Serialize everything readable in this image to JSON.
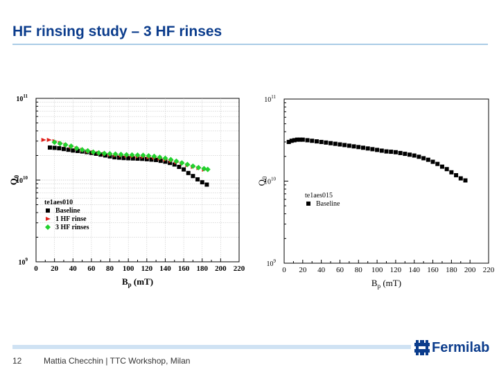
{
  "slide": {
    "title": "HF rinsing study – 3 HF rinses",
    "page_number": "12",
    "footer_text": "Mattia Checchin | TTC Workshop, Milan",
    "logo_text": "Fermilab",
    "logo_icon": "fermilab-logo-icon",
    "accent_color": "#0b3c8c"
  },
  "chart_data": [
    {
      "type": "scatter",
      "title": "",
      "xlabel": "B",
      "xlabel_sub": "p",
      "xlabel_unit": " (mT)",
      "ylabel": "Q",
      "ylabel_sub": "0",
      "xlim": [
        0,
        220
      ],
      "ylim": [
        1000000000.0,
        100000000000.0
      ],
      "yscale": "log",
      "x_ticks": [
        "0",
        "20",
        "40",
        "60",
        "80",
        "100",
        "120",
        "140",
        "160",
        "180",
        "200",
        "220"
      ],
      "y_tick_base": "10",
      "y_tick_exponents": [
        "9",
        "10",
        "11"
      ],
      "grid": true,
      "legend_title": "te1aes010",
      "legend_position": "lower-left",
      "series": [
        {
          "name": "Baseline",
          "marker": "square",
          "color": "#000000",
          "x": [
            15,
            20,
            25,
            30,
            35,
            40,
            45,
            50,
            55,
            60,
            65,
            70,
            75,
            80,
            85,
            90,
            95,
            100,
            105,
            110,
            115,
            120,
            125,
            130,
            135,
            140,
            145,
            150,
            155,
            160,
            165,
            170,
            175,
            180,
            185
          ],
          "y": [
            25000000000.0,
            24800000000.0,
            24500000000.0,
            24000000000.0,
            23500000000.0,
            23000000000.0,
            22700000000.0,
            22400000000.0,
            22000000000.0,
            21500000000.0,
            21000000000.0,
            20500000000.0,
            20000000000.0,
            19500000000.0,
            19000000000.0,
            18800000000.0,
            18600000000.0,
            18500000000.0,
            18400000000.0,
            18300000000.0,
            18200000000.0,
            18000000000.0,
            17800000000.0,
            17600000000.0,
            17200000000.0,
            16800000000.0,
            16200000000.0,
            15500000000.0,
            14500000000.0,
            13500000000.0,
            12200000000.0,
            11200000000.0,
            10200000000.0,
            9400000000.0,
            8800000000.0
          ]
        },
        {
          "name": "1 HF rinse",
          "marker": "triangle-right",
          "color": "#e0201b",
          "x": [
            8,
            14,
            20,
            26,
            32,
            38,
            44,
            50,
            56,
            62,
            68,
            74,
            80,
            86,
            92,
            98,
            104,
            110,
            116,
            122,
            128,
            134,
            140,
            146,
            152,
            158,
            164,
            170,
            176,
            182
          ],
          "y": [
            31000000000.0,
            31000000000.0,
            30000000000.0,
            28500000000.0,
            27000000000.0,
            25500000000.0,
            24500000000.0,
            23500000000.0,
            22500000000.0,
            22000000000.0,
            21500000000.0,
            21000000000.0,
            20500000000.0,
            20200000000.0,
            20000000000.0,
            19800000000.0,
            19600000000.0,
            19400000000.0,
            19300000000.0,
            19000000000.0,
            18800000000.0,
            18400000000.0,
            17800000000.0,
            17200000000.0,
            16500000000.0,
            16000000000.0,
            15200000000.0,
            14500000000.0,
            14000000000.0,
            13400000000.0
          ]
        },
        {
          "name": "3 HF rinses",
          "marker": "diamond",
          "color": "#22d12e",
          "x": [
            20,
            26,
            32,
            38,
            44,
            50,
            56,
            62,
            68,
            74,
            80,
            86,
            92,
            98,
            104,
            110,
            116,
            122,
            128,
            134,
            140,
            146,
            152,
            158,
            164,
            170,
            176,
            182,
            186
          ],
          "y": [
            29000000000.0,
            28000000000.0,
            27000000000.0,
            26000000000.0,
            24500000000.0,
            23500000000.0,
            22800000000.0,
            22000000000.0,
            21500000000.0,
            21200000000.0,
            21000000000.0,
            20800000000.0,
            20600000000.0,
            20400000000.0,
            20300000000.0,
            20200000000.0,
            20100000000.0,
            19800000000.0,
            19500000000.0,
            19000000000.0,
            18500000000.0,
            17800000000.0,
            17000000000.0,
            16200000000.0,
            15500000000.0,
            14800000000.0,
            14200000000.0,
            13800000000.0,
            13500000000.0
          ]
        }
      ]
    },
    {
      "type": "scatter",
      "title": "",
      "xlabel": "B",
      "xlabel_sub": "p",
      "xlabel_unit": " (mT)",
      "ylabel": "Q",
      "ylabel_sub": "0",
      "xlim": [
        0,
        220
      ],
      "ylim": [
        1000000000.0,
        100000000000.0
      ],
      "yscale": "log",
      "x_ticks": [
        "0",
        "20",
        "40",
        "60",
        "80",
        "100",
        "120",
        "140",
        "160",
        "180",
        "200",
        "220"
      ],
      "y_tick_base": "10",
      "y_tick_exponents": [
        "9",
        "10",
        "11"
      ],
      "grid": false,
      "legend_title": "te1aes015",
      "legend_position": "center-left",
      "series": [
        {
          "name": "Baseline",
          "marker": "square",
          "color": "#000000",
          "x": [
            5,
            8,
            11,
            14,
            17,
            20,
            25,
            30,
            35,
            40,
            45,
            50,
            55,
            60,
            65,
            70,
            75,
            80,
            85,
            90,
            95,
            100,
            105,
            110,
            115,
            120,
            125,
            130,
            135,
            140,
            145,
            150,
            155,
            160,
            165,
            170,
            175,
            180,
            185,
            190,
            195
          ],
          "y": [
            30000000000.0,
            31000000000.0,
            31500000000.0,
            32000000000.0,
            32000000000.0,
            32000000000.0,
            31500000000.0,
            31000000000.0,
            30500000000.0,
            30000000000.0,
            29500000000.0,
            29000000000.0,
            28500000000.0,
            28000000000.0,
            27500000000.0,
            27000000000.0,
            26500000000.0,
            26000000000.0,
            25500000000.0,
            25000000000.0,
            24500000000.0,
            24000000000.0,
            23500000000.0,
            23000000000.0,
            22800000000.0,
            22500000000.0,
            22000000000.0,
            21500000000.0,
            21000000000.0,
            20500000000.0,
            19800000000.0,
            19000000000.0,
            18200000000.0,
            17200000000.0,
            16200000000.0,
            15000000000.0,
            14000000000.0,
            12800000000.0,
            11800000000.0,
            10800000000.0,
            10200000000.0
          ]
        }
      ]
    }
  ]
}
